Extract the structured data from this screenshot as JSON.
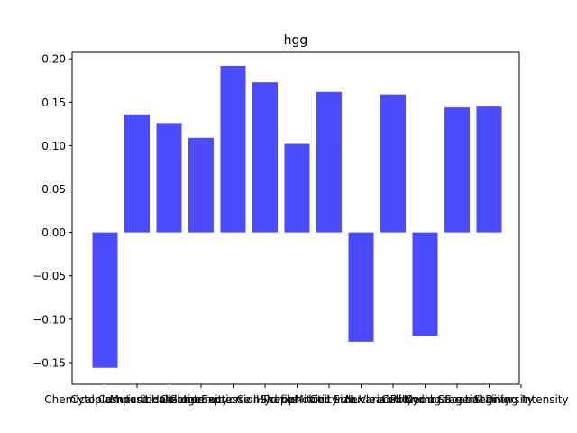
{
  "chart_data": {
    "type": "bar",
    "title": "hgg",
    "xlabel": "",
    "ylabel": "",
    "categories": [
      "Chemical Composition",
      "Cytoplasmic Localization",
      "Mutant Heterogeneity",
      "Cell Interaction",
      "Gene Expression Profile",
      "Cell Shape",
      "Hydrophobicity",
      "Mitotic Index",
      "Cell Size Variability",
      "Nuclear Rounding",
      "Cell Cycle Stage",
      "Membrane Integrity",
      "Spatial Diversity",
      "Staining Intensity"
    ],
    "values": [
      -0.156,
      0.136,
      0.126,
      0.109,
      0.192,
      0.173,
      0.102,
      0.162,
      -0.126,
      0.159,
      -0.119,
      0.144,
      0.145,
      0.0
    ],
    "ylim": [
      -0.175,
      0.2075
    ],
    "yticks": [
      -0.15,
      -0.1,
      -0.05,
      0.0,
      0.05,
      0.1,
      0.15,
      0.2
    ],
    "ytick_labels": [
      "−0.15",
      "−0.10",
      "−0.05",
      "0.00",
      "0.05",
      "0.10",
      "0.15",
      "0.20"
    ],
    "bar_color": "#4b4bff",
    "grid": false,
    "legend": "none"
  }
}
